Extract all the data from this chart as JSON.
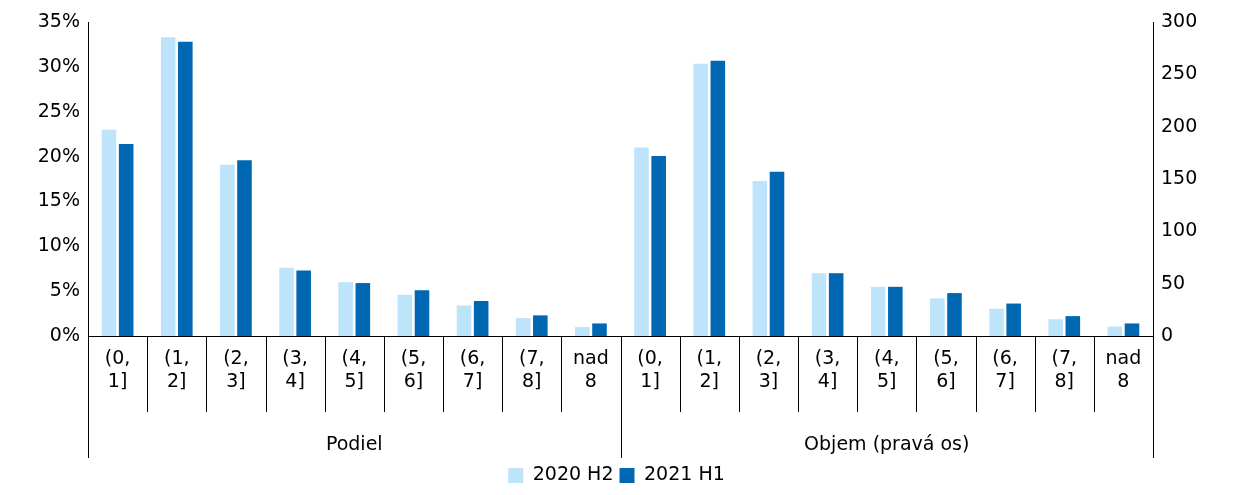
{
  "chart_data": {
    "type": "bar",
    "categories": [
      "(0, 1]",
      "(1, 2]",
      "(2, 3]",
      "(3, 4]",
      "(4, 5]",
      "(5, 6]",
      "(6, 7]",
      "(7, 8]",
      "nad 8",
      "(0, 1]",
      "(1, 2]",
      "(2, 3]",
      "(3, 4]",
      "(4, 5]",
      "(5, 6]",
      "(6, 7]",
      "(7, 8]",
      "nad 8"
    ],
    "series": [
      {
        "name": "2020 H2",
        "color": "#bde4fb",
        "values": [
          23.0,
          33.3,
          19.1,
          7.6,
          6.0,
          4.6,
          3.4,
          2.0,
          1.0,
          null,
          null,
          null,
          null,
          null,
          null,
          null,
          null,
          null
        ]
      },
      {
        "name": "2021 H1",
        "color": "#0068b3",
        "values": [
          21.4,
          32.8,
          19.6,
          7.3,
          5.9,
          5.1,
          3.9,
          2.3,
          1.4,
          null,
          null,
          null,
          null,
          null,
          null,
          null,
          null,
          null
        ]
      },
      {
        "color": "#bde4fb",
        "axis": "y2",
        "values": [
          null,
          null,
          null,
          null,
          null,
          null,
          null,
          null,
          null,
          180,
          260,
          148,
          60,
          47,
          36,
          26,
          16,
          9
        ]
      },
      {
        "color": "#0068b3",
        "axis": "y2",
        "values": [
          null,
          null,
          null,
          null,
          null,
          null,
          null,
          null,
          null,
          172,
          263,
          157,
          60,
          47,
          41,
          31,
          19,
          12
        ]
      }
    ],
    "ylim": [
      0,
      35
    ],
    "yticks": [
      {
        "value": 0,
        "label": "0%"
      },
      {
        "value": 5,
        "label": "5%"
      },
      {
        "value": 10,
        "label": "10%"
      },
      {
        "value": 15,
        "label": "15%"
      },
      {
        "value": 20,
        "label": "20%"
      },
      {
        "value": 25,
        "label": "25%"
      },
      {
        "value": 30,
        "label": "30%"
      },
      {
        "value": 35,
        "label": "35%"
      }
    ],
    "y2lim": [
      0,
      300
    ],
    "y2ticks": [
      0,
      50,
      100,
      150,
      200,
      250,
      300
    ],
    "annotations": [
      "Podiel",
      "Objem (pravá os)"
    ],
    "legend": "bottom"
  }
}
